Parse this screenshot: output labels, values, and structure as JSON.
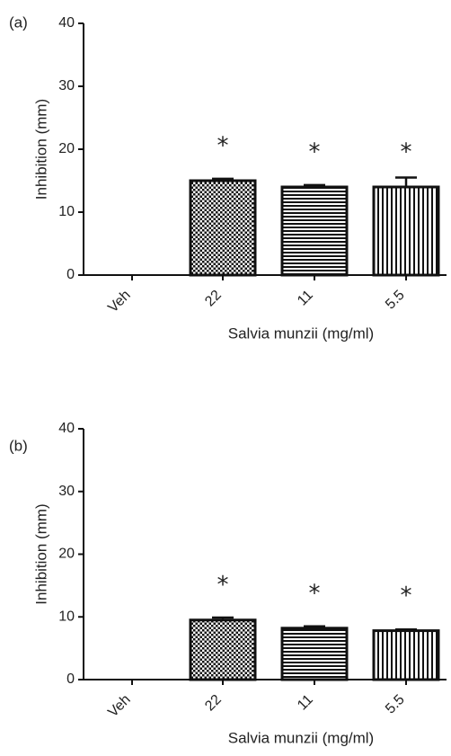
{
  "chart_data": [
    {
      "type": "bar",
      "panel_label": "(a)",
      "categories": [
        "Veh",
        "22",
        "11",
        "5.5"
      ],
      "values": [
        0,
        15,
        14,
        14
      ],
      "error": [
        0,
        0.3,
        0.3,
        1.5
      ],
      "annotations": [
        "",
        "*",
        "*",
        "*"
      ],
      "patterns": [
        "none",
        "dots",
        "horizontal-lines",
        "vertical-lines"
      ],
      "ylabel": "Inhibition (mm)",
      "xlabel": "Salvia munzii (mg/ml)",
      "ylim": [
        0,
        40
      ],
      "yticks": [
        0,
        10,
        20,
        30,
        40
      ],
      "grid": false
    },
    {
      "type": "bar",
      "panel_label": "(b)",
      "categories": [
        "Veh",
        "22",
        "11",
        "5.5"
      ],
      "values": [
        0,
        9.5,
        8.2,
        7.8
      ],
      "error": [
        0,
        0.4,
        0.3,
        0.2
      ],
      "annotations": [
        "",
        "*",
        "*",
        "*"
      ],
      "patterns": [
        "none",
        "dots",
        "horizontal-lines",
        "vertical-lines"
      ],
      "ylabel": "Inhibition (mm)",
      "xlabel": "Salvia munzii (mg/ml)",
      "ylim": [
        0,
        40
      ],
      "yticks": [
        0,
        10,
        20,
        30,
        40
      ],
      "grid": false
    }
  ],
  "colors": {
    "ink": "#111111",
    "background": "#ffffff"
  }
}
